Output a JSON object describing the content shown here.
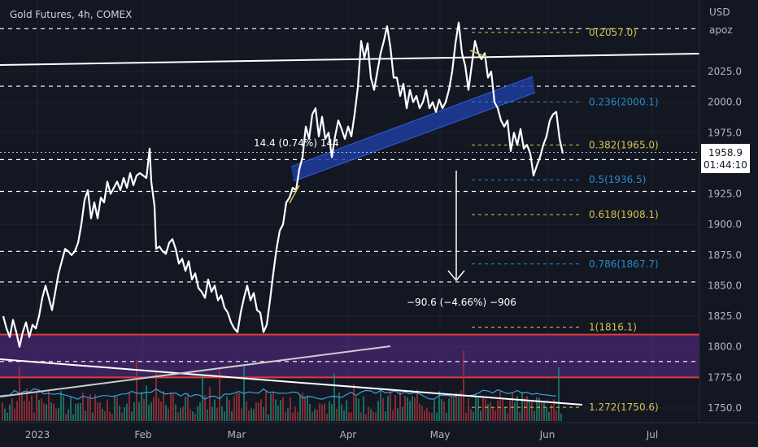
{
  "chart_data": {
    "type": "line",
    "title": "Gold Futures, 4h, COMEX",
    "currency": "USD",
    "unit_note": "apoz",
    "last_price": "1958.9",
    "countdown": "01:44:10",
    "y_ticks": [
      "2025.0",
      "2000.0",
      "1975.0",
      "1950.0",
      "1925.0",
      "1900.0",
      "1875.0",
      "1850.0",
      "1825.0",
      "1800.0",
      "1775.0",
      "1750.0"
    ],
    "x_ticks": [
      "2023",
      "Feb",
      "Mar",
      "Apr",
      "May",
      "Jun",
      "Jul"
    ],
    "series": [
      {
        "values": [
          [
            0,
            1825
          ],
          [
            4,
            1815
          ],
          [
            8,
            1808
          ],
          [
            12,
            1822
          ],
          [
            16,
            1812
          ],
          [
            20,
            1800
          ],
          [
            24,
            1812
          ],
          [
            28,
            1820
          ],
          [
            32,
            1808
          ],
          [
            36,
            1818
          ],
          [
            40,
            1815
          ],
          [
            44,
            1825
          ],
          [
            48,
            1840
          ],
          [
            52,
            1850
          ],
          [
            56,
            1840
          ],
          [
            60,
            1830
          ],
          [
            64,
            1845
          ],
          [
            68,
            1860
          ],
          [
            72,
            1870
          ],
          [
            76,
            1880
          ],
          [
            80,
            1878
          ],
          [
            84,
            1875
          ],
          [
            88,
            1878
          ],
          [
            92,
            1885
          ],
          [
            96,
            1900
          ],
          [
            100,
            1920
          ],
          [
            104,
            1928
          ],
          [
            108,
            1905
          ],
          [
            112,
            1918
          ],
          [
            116,
            1905
          ],
          [
            120,
            1922
          ],
          [
            124,
            1918
          ],
          [
            128,
            1935
          ],
          [
            132,
            1925
          ],
          [
            136,
            1930
          ],
          [
            140,
            1935
          ],
          [
            144,
            1928
          ],
          [
            148,
            1938
          ],
          [
            152,
            1930
          ],
          [
            156,
            1942
          ],
          [
            160,
            1932
          ],
          [
            164,
            1940
          ],
          [
            168,
            1942
          ],
          [
            172,
            1940
          ],
          [
            176,
            1938
          ],
          [
            180,
            1962
          ],
          [
            182,
            1935
          ],
          [
            186,
            1915
          ],
          [
            188,
            1880
          ],
          [
            192,
            1882
          ],
          [
            196,
            1878
          ],
          [
            200,
            1876
          ],
          [
            204,
            1885
          ],
          [
            208,
            1888
          ],
          [
            212,
            1880
          ],
          [
            216,
            1868
          ],
          [
            220,
            1872
          ],
          [
            224,
            1862
          ],
          [
            228,
            1870
          ],
          [
            232,
            1855
          ],
          [
            236,
            1860
          ],
          [
            240,
            1848
          ],
          [
            244,
            1845
          ],
          [
            248,
            1840
          ],
          [
            252,
            1855
          ],
          [
            256,
            1845
          ],
          [
            260,
            1850
          ],
          [
            264,
            1838
          ],
          [
            268,
            1842
          ],
          [
            272,
            1832
          ],
          [
            276,
            1828
          ],
          [
            280,
            1820
          ],
          [
            284,
            1815
          ],
          [
            288,
            1812
          ],
          [
            292,
            1828
          ],
          [
            296,
            1840
          ],
          [
            300,
            1850
          ],
          [
            304,
            1838
          ],
          [
            308,
            1844
          ],
          [
            312,
            1830
          ],
          [
            316,
            1828
          ],
          [
            320,
            1812
          ],
          [
            324,
            1818
          ],
          [
            328,
            1838
          ],
          [
            332,
            1860
          ],
          [
            336,
            1880
          ],
          [
            340,
            1895
          ],
          [
            344,
            1900
          ],
          [
            348,
            1918
          ],
          [
            352,
            1922
          ],
          [
            356,
            1930
          ],
          [
            360,
            1928
          ],
          [
            364,
            1945
          ],
          [
            368,
            1955
          ],
          [
            372,
            1980
          ],
          [
            376,
            1970
          ],
          [
            380,
            1990
          ],
          [
            384,
            1995
          ],
          [
            388,
            1972
          ],
          [
            392,
            1988
          ],
          [
            396,
            1970
          ],
          [
            400,
            1975
          ],
          [
            404,
            1955
          ],
          [
            408,
            1972
          ],
          [
            412,
            1985
          ],
          [
            416,
            1978
          ],
          [
            420,
            1970
          ],
          [
            424,
            1980
          ],
          [
            428,
            1972
          ],
          [
            432,
            1990
          ],
          [
            436,
            2012
          ],
          [
            440,
            2050
          ],
          [
            444,
            2036
          ],
          [
            448,
            2048
          ],
          [
            452,
            2020
          ],
          [
            456,
            2010
          ],
          [
            460,
            2025
          ],
          [
            464,
            2040
          ],
          [
            468,
            2050
          ],
          [
            472,
            2062
          ],
          [
            476,
            2045
          ],
          [
            480,
            2020
          ],
          [
            484,
            2020
          ],
          [
            488,
            2005
          ],
          [
            492,
            2015
          ],
          [
            496,
            1995
          ],
          [
            500,
            2010
          ],
          [
            504,
            2000
          ],
          [
            508,
            2005
          ],
          [
            512,
            1995
          ],
          [
            516,
            2000
          ],
          [
            520,
            2010
          ],
          [
            524,
            1995
          ],
          [
            528,
            2000
          ],
          [
            532,
            1992
          ],
          [
            536,
            2002
          ],
          [
            540,
            1995
          ],
          [
            544,
            2000
          ],
          [
            548,
            2010
          ],
          [
            552,
            2025
          ],
          [
            556,
            2048
          ],
          [
            560,
            2065
          ],
          [
            564,
            2040
          ],
          [
            568,
            2030
          ],
          [
            572,
            2010
          ],
          [
            576,
            2030
          ],
          [
            580,
            2050
          ],
          [
            584,
            2040
          ],
          [
            588,
            2035
          ],
          [
            592,
            2040
          ],
          [
            596,
            2020
          ],
          [
            600,
            2025
          ],
          [
            604,
            2000
          ],
          [
            608,
            1995
          ],
          [
            612,
            1985
          ],
          [
            616,
            1980
          ],
          [
            620,
            1985
          ],
          [
            624,
            1960
          ],
          [
            628,
            1975
          ],
          [
            632,
            1965
          ],
          [
            636,
            1978
          ],
          [
            640,
            1962
          ],
          [
            644,
            1965
          ],
          [
            648,
            1958
          ],
          [
            652,
            1940
          ],
          [
            656,
            1948
          ],
          [
            660,
            1955
          ],
          [
            664,
            1965
          ],
          [
            668,
            1972
          ],
          [
            672,
            1985
          ],
          [
            676,
            1990
          ],
          [
            680,
            1992
          ],
          [
            684,
            1970
          ],
          [
            688,
            1958
          ]
        ]
      }
    ],
    "fibonacci": [
      {
        "label": "0(2057.0)",
        "price": 2057.0,
        "color": "#d4c44a"
      },
      {
        "label": "0.236(2000.1)",
        "price": 2000.1,
        "color": "#2a88c8"
      },
      {
        "label": "0.382(1965.0)",
        "price": 1965.0,
        "color": "#d4c44a"
      },
      {
        "label": "0.5(1936.5)",
        "price": 1936.5,
        "color": "#2a88c8"
      },
      {
        "label": "0.618(1908.1)",
        "price": 1908.1,
        "color": "#d4c44a"
      },
      {
        "label": "0.786(1867.7)",
        "price": 1867.7,
        "color": "#2a88c8"
      },
      {
        "label": "1(1816.1)",
        "price": 1816.1,
        "color": "#d4c44a"
      },
      {
        "label": "1.272(1750.6)",
        "price": 1750.6,
        "color": "#d4c44a"
      }
    ],
    "horizontal_dashed_levels": [
      2060,
      2013,
      1953,
      1927,
      1878,
      1853,
      1788
    ],
    "support_zone": {
      "low": 1775,
      "high": 1810,
      "color": "#5b2d8e"
    },
    "measures": [
      {
        "label": "14.4 (0.74%) 144",
        "color": "#ffffff"
      },
      {
        "label": "−90.6 (−4.66%) −906",
        "color": "#ffffff"
      }
    ],
    "colors": {
      "price_line": "#ffffff",
      "channel": "#1e3c9c",
      "zone_border": "#e03a3a",
      "grid": "#2a2e39"
    }
  }
}
